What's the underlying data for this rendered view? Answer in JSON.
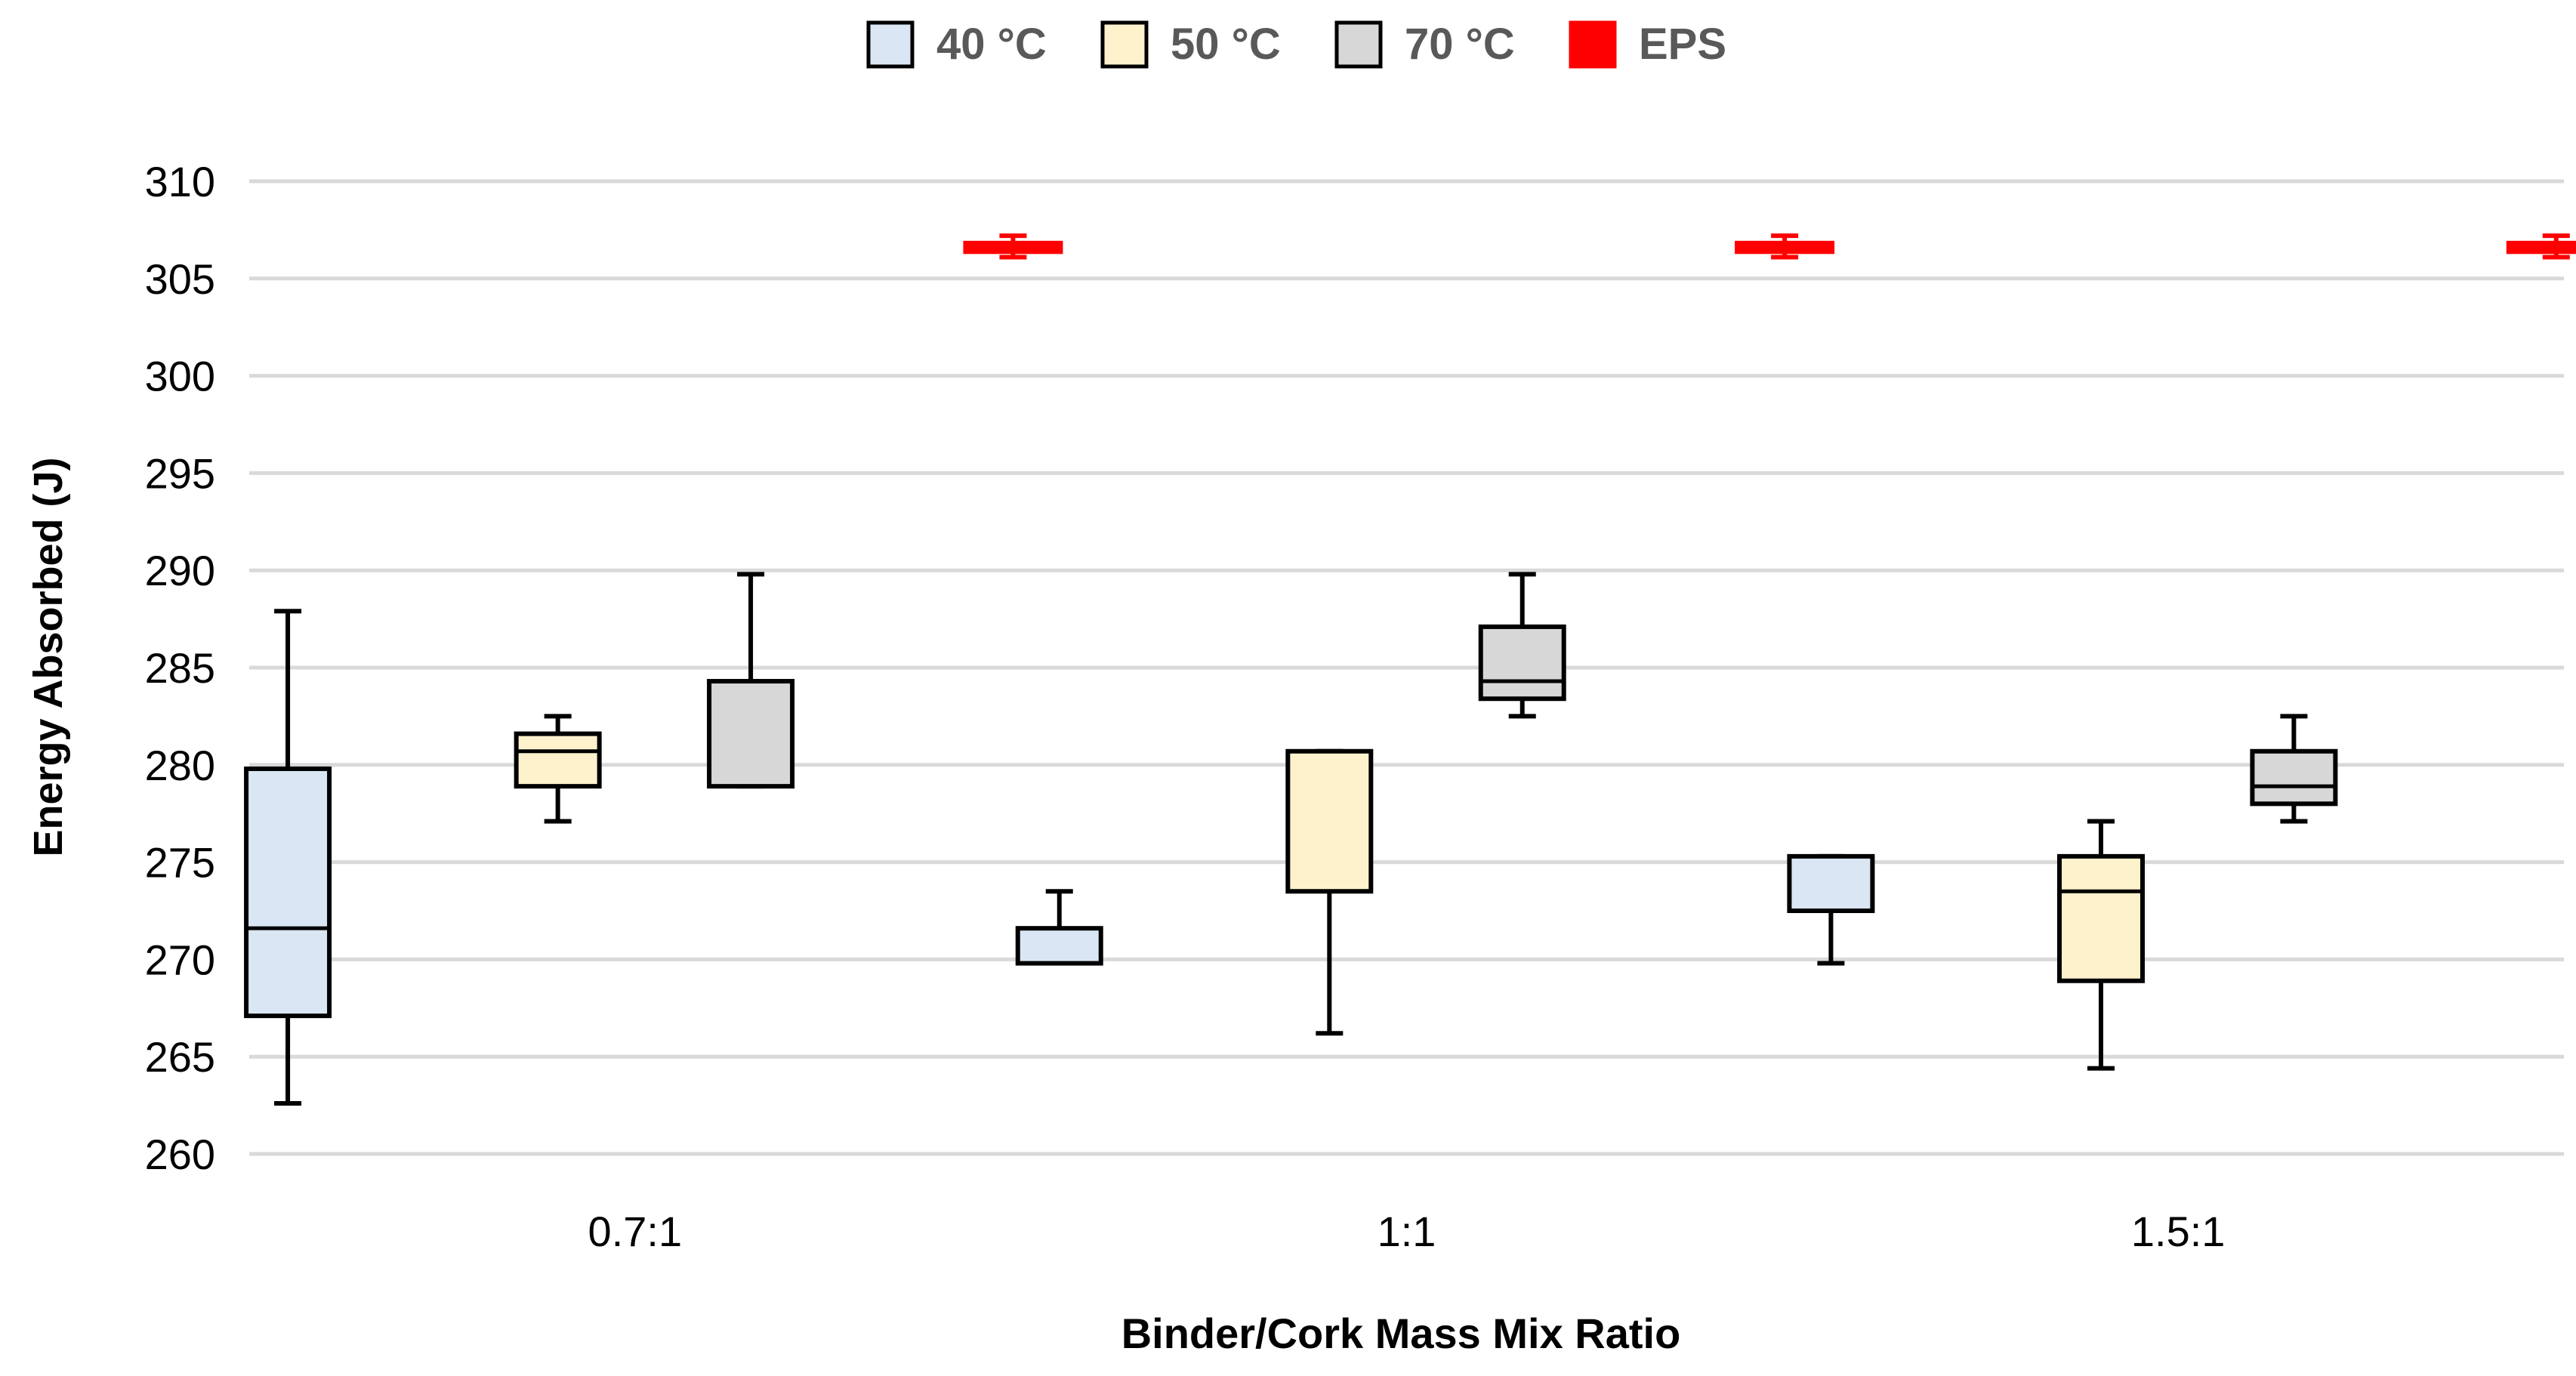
{
  "chart_data": {
    "type": "box",
    "title": "",
    "xlabel": "Binder/Cork Mass Mix Ratio",
    "ylabel": "Energy Absorbed (J)",
    "ylim": [
      260,
      310
    ],
    "yticks": [
      260,
      265,
      270,
      275,
      280,
      285,
      290,
      295,
      300,
      305,
      310
    ],
    "grid": true,
    "legend_position": "top-center",
    "categories": [
      "0.7:1",
      "1:1",
      "1.5:1"
    ],
    "series": [
      {
        "name": "40 °C",
        "color": "#dae6f3",
        "boxes": [
          {
            "min": 262.6,
            "q1": 267.1,
            "median": 271.6,
            "q3": 279.8,
            "max": 287.9
          },
          {
            "min": 269.8,
            "q1": 269.8,
            "median": 269.8,
            "q3": 271.6,
            "max": 273.5
          },
          {
            "min": 269.8,
            "q1": 272.5,
            "median": 272.5,
            "q3": 275.3,
            "max": 275.3
          }
        ]
      },
      {
        "name": "50 °C",
        "color": "#fef2cd",
        "boxes": [
          {
            "min": 277.1,
            "q1": 278.9,
            "median": 280.7,
            "q3": 281.6,
            "max": 282.5
          },
          {
            "min": 266.2,
            "q1": 273.5,
            "median": 273.5,
            "q3": 280.7,
            "max": 280.7
          },
          {
            "min": 264.4,
            "q1": 268.9,
            "median": 273.5,
            "q3": 275.3,
            "max": 277.1
          }
        ]
      },
      {
        "name": "70 °C",
        "color": "#d7d7d7",
        "boxes": [
          {
            "min": 278.9,
            "q1": 278.9,
            "median": 278.9,
            "q3": 284.3,
            "max": 289.8
          },
          {
            "min": 282.5,
            "q1": 283.4,
            "median": 284.3,
            "q3": 287.1,
            "max": 289.8
          },
          {
            "min": 277.1,
            "q1": 278.0,
            "median": 278.9,
            "q3": 280.7,
            "max": 282.5
          }
        ]
      },
      {
        "name": "EPS",
        "color": "#ff0000",
        "boxes": [
          {
            "min": 306.1,
            "q1": 306.3,
            "median": 306.6,
            "q3": 306.9,
            "max": 307.2
          },
          {
            "min": 306.1,
            "q1": 306.3,
            "median": 306.6,
            "q3": 306.9,
            "max": 307.2
          },
          {
            "min": 306.1,
            "q1": 306.3,
            "median": 306.6,
            "q3": 306.9,
            "max": 307.2
          }
        ]
      }
    ]
  }
}
